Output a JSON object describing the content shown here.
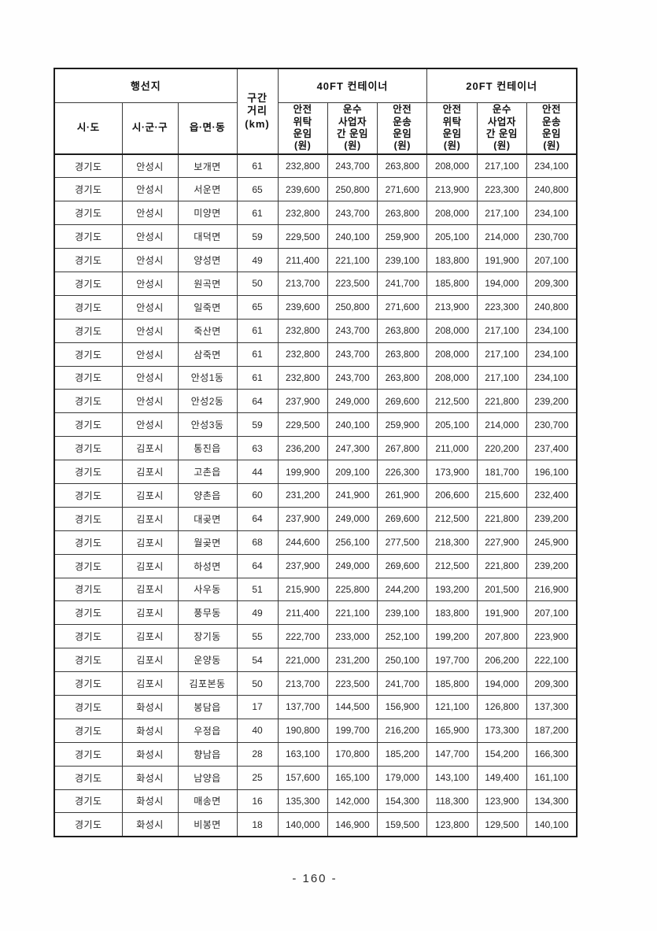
{
  "document": {
    "footer": {
      "page_label": "- 160 -"
    },
    "table": {
      "header": {
        "destination_group": "행선지",
        "col_sido": "시·도",
        "col_sigungu": "시·군·구",
        "col_eupmyeondong": "읍·면·동",
        "col_distance": "구간\n거리\n(km)",
        "group_40ft": "40FT 컨테이너",
        "group_20ft": "20FT 컨테이너",
        "col_safe_consignment": "안전\n위탁\n운임\n(원)",
        "col_inter_carrier": "운수\n사업자\n간 운임\n(원)",
        "col_safe_transport": "안전\n운송\n운임\n(원)"
      },
      "rows": [
        [
          "경기도",
          "안성시",
          "보개면",
          "61",
          "232,800",
          "243,700",
          "263,800",
          "208,000",
          "217,100",
          "234,100"
        ],
        [
          "경기도",
          "안성시",
          "서운면",
          "65",
          "239,600",
          "250,800",
          "271,600",
          "213,900",
          "223,300",
          "240,800"
        ],
        [
          "경기도",
          "안성시",
          "미양면",
          "61",
          "232,800",
          "243,700",
          "263,800",
          "208,000",
          "217,100",
          "234,100"
        ],
        [
          "경기도",
          "안성시",
          "대덕면",
          "59",
          "229,500",
          "240,100",
          "259,900",
          "205,100",
          "214,000",
          "230,700"
        ],
        [
          "경기도",
          "안성시",
          "양성면",
          "49",
          "211,400",
          "221,100",
          "239,100",
          "183,800",
          "191,900",
          "207,100"
        ],
        [
          "경기도",
          "안성시",
          "원곡면",
          "50",
          "213,700",
          "223,500",
          "241,700",
          "185,800",
          "194,000",
          "209,300"
        ],
        [
          "경기도",
          "안성시",
          "일죽면",
          "65",
          "239,600",
          "250,800",
          "271,600",
          "213,900",
          "223,300",
          "240,800"
        ],
        [
          "경기도",
          "안성시",
          "죽산면",
          "61",
          "232,800",
          "243,700",
          "263,800",
          "208,000",
          "217,100",
          "234,100"
        ],
        [
          "경기도",
          "안성시",
          "삼죽면",
          "61",
          "232,800",
          "243,700",
          "263,800",
          "208,000",
          "217,100",
          "234,100"
        ],
        [
          "경기도",
          "안성시",
          "안성1동",
          "61",
          "232,800",
          "243,700",
          "263,800",
          "208,000",
          "217,100",
          "234,100"
        ],
        [
          "경기도",
          "안성시",
          "안성2동",
          "64",
          "237,900",
          "249,000",
          "269,600",
          "212,500",
          "221,800",
          "239,200"
        ],
        [
          "경기도",
          "안성시",
          "안성3동",
          "59",
          "229,500",
          "240,100",
          "259,900",
          "205,100",
          "214,000",
          "230,700"
        ],
        [
          "경기도",
          "김포시",
          "통진읍",
          "63",
          "236,200",
          "247,300",
          "267,800",
          "211,000",
          "220,200",
          "237,400"
        ],
        [
          "경기도",
          "김포시",
          "고촌읍",
          "44",
          "199,900",
          "209,100",
          "226,300",
          "173,900",
          "181,700",
          "196,100"
        ],
        [
          "경기도",
          "김포시",
          "양촌읍",
          "60",
          "231,200",
          "241,900",
          "261,900",
          "206,600",
          "215,600",
          "232,400"
        ],
        [
          "경기도",
          "김포시",
          "대곶면",
          "64",
          "237,900",
          "249,000",
          "269,600",
          "212,500",
          "221,800",
          "239,200"
        ],
        [
          "경기도",
          "김포시",
          "월곶면",
          "68",
          "244,600",
          "256,100",
          "277,500",
          "218,300",
          "227,900",
          "245,900"
        ],
        [
          "경기도",
          "김포시",
          "하성면",
          "64",
          "237,900",
          "249,000",
          "269,600",
          "212,500",
          "221,800",
          "239,200"
        ],
        [
          "경기도",
          "김포시",
          "사우동",
          "51",
          "215,900",
          "225,800",
          "244,200",
          "193,200",
          "201,500",
          "216,900"
        ],
        [
          "경기도",
          "김포시",
          "풍무동",
          "49",
          "211,400",
          "221,100",
          "239,100",
          "183,800",
          "191,900",
          "207,100"
        ],
        [
          "경기도",
          "김포시",
          "장기동",
          "55",
          "222,700",
          "233,000",
          "252,100",
          "199,200",
          "207,800",
          "223,900"
        ],
        [
          "경기도",
          "김포시",
          "운양동",
          "54",
          "221,000",
          "231,200",
          "250,100",
          "197,700",
          "206,200",
          "222,100"
        ],
        [
          "경기도",
          "김포시",
          "김포본동",
          "50",
          "213,700",
          "223,500",
          "241,700",
          "185,800",
          "194,000",
          "209,300"
        ],
        [
          "경기도",
          "화성시",
          "봉담읍",
          "17",
          "137,700",
          "144,500",
          "156,900",
          "121,100",
          "126,800",
          "137,300"
        ],
        [
          "경기도",
          "화성시",
          "우정읍",
          "40",
          "190,800",
          "199,700",
          "216,200",
          "165,900",
          "173,300",
          "187,200"
        ],
        [
          "경기도",
          "화성시",
          "향남읍",
          "28",
          "163,100",
          "170,800",
          "185,200",
          "147,700",
          "154,200",
          "166,300"
        ],
        [
          "경기도",
          "화성시",
          "남양읍",
          "25",
          "157,600",
          "165,100",
          "179,000",
          "143,100",
          "149,400",
          "161,100"
        ],
        [
          "경기도",
          "화성시",
          "매송면",
          "16",
          "135,300",
          "142,000",
          "154,300",
          "118,300",
          "123,900",
          "134,300"
        ],
        [
          "경기도",
          "화성시",
          "비봉면",
          "18",
          "140,000",
          "146,900",
          "159,500",
          "123,800",
          "129,500",
          "140,100"
        ]
      ]
    }
  }
}
